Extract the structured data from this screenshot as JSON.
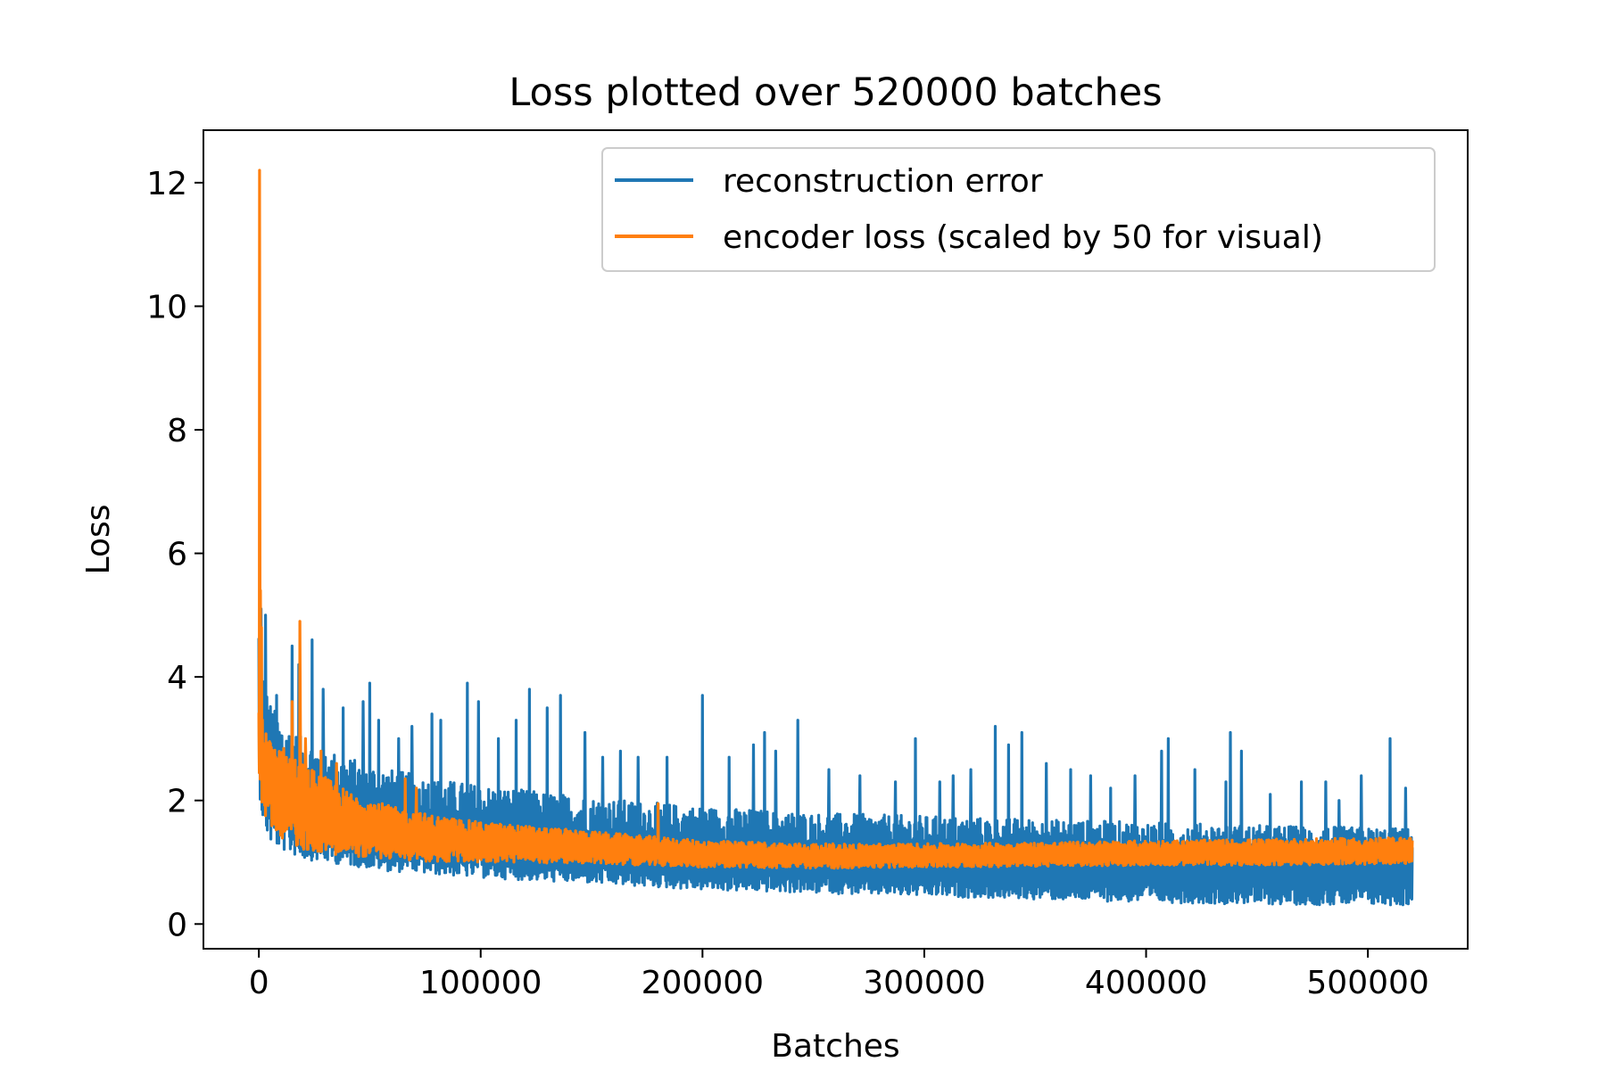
{
  "chart_data": {
    "type": "line",
    "title": "Loss plotted over 520000 batches",
    "xlabel": "Batches",
    "ylabel": "Loss",
    "xlim": [
      -25000,
      545000
    ],
    "ylim": [
      -0.4,
      12.85
    ],
    "xticks": [
      0,
      100000,
      200000,
      300000,
      400000,
      500000
    ],
    "xtick_labels": [
      "0",
      "100000",
      "200000",
      "300000",
      "400000",
      "500000"
    ],
    "yticks": [
      0,
      2,
      4,
      6,
      8,
      10,
      12
    ],
    "ytick_labels": [
      "0",
      "2",
      "4",
      "6",
      "8",
      "10",
      "12"
    ],
    "grid": false,
    "legend_position": "upper right",
    "x_range": [
      0,
      520000
    ],
    "series": [
      {
        "name": "reconstruction error",
        "color": "#1f77b4",
        "envelope": {
          "x": [
            0,
            2000,
            5000,
            10000,
            20000,
            40000,
            60000,
            80000,
            100000,
            150000,
            200000,
            250000,
            300000,
            350000,
            400000,
            450000,
            520000
          ],
          "mid": [
            3.0,
            2.6,
            2.3,
            2.05,
            1.8,
            1.55,
            1.4,
            1.3,
            1.25,
            1.12,
            1.02,
            0.95,
            0.9,
            0.88,
            0.85,
            0.82,
            0.8
          ],
          "low": [
            2.2,
            1.6,
            1.3,
            1.2,
            1.05,
            0.95,
            0.85,
            0.8,
            0.75,
            0.65,
            0.55,
            0.5,
            0.45,
            0.4,
            0.35,
            0.32,
            0.3
          ],
          "high": [
            5.1,
            4.0,
            3.6,
            3.3,
            3.0,
            2.7,
            2.5,
            2.35,
            2.25,
            2.05,
            1.9,
            1.8,
            1.75,
            1.7,
            1.65,
            1.6,
            1.55
          ]
        },
        "spikes": [
          {
            "x": 1000,
            "y": 5.1
          },
          {
            "x": 3000,
            "y": 5.0
          },
          {
            "x": 8000,
            "y": 3.7
          },
          {
            "x": 15000,
            "y": 4.5
          },
          {
            "x": 18000,
            "y": 4.2
          },
          {
            "x": 24000,
            "y": 4.6
          },
          {
            "x": 29000,
            "y": 3.8
          },
          {
            "x": 38000,
            "y": 3.5
          },
          {
            "x": 47000,
            "y": 3.6
          },
          {
            "x": 50000,
            "y": 3.9
          },
          {
            "x": 54000,
            "y": 3.3
          },
          {
            "x": 63000,
            "y": 3.0
          },
          {
            "x": 69000,
            "y": 3.2
          },
          {
            "x": 78000,
            "y": 3.4
          },
          {
            "x": 82000,
            "y": 3.3
          },
          {
            "x": 94000,
            "y": 3.9
          },
          {
            "x": 99000,
            "y": 3.6
          },
          {
            "x": 108000,
            "y": 3.0
          },
          {
            "x": 116000,
            "y": 3.3
          },
          {
            "x": 122000,
            "y": 3.8
          },
          {
            "x": 130000,
            "y": 3.5
          },
          {
            "x": 136000,
            "y": 3.7
          },
          {
            "x": 147000,
            "y": 3.1
          },
          {
            "x": 155000,
            "y": 2.7
          },
          {
            "x": 163000,
            "y": 2.8
          },
          {
            "x": 171000,
            "y": 2.7
          },
          {
            "x": 184000,
            "y": 2.7
          },
          {
            "x": 200000,
            "y": 3.7
          },
          {
            "x": 212000,
            "y": 2.7
          },
          {
            "x": 223000,
            "y": 2.9
          },
          {
            "x": 228000,
            "y": 3.1
          },
          {
            "x": 233000,
            "y": 2.8
          },
          {
            "x": 243000,
            "y": 3.3
          },
          {
            "x": 257000,
            "y": 2.5
          },
          {
            "x": 271000,
            "y": 2.4
          },
          {
            "x": 287000,
            "y": 2.3
          },
          {
            "x": 296000,
            "y": 3.0
          },
          {
            "x": 307000,
            "y": 2.3
          },
          {
            "x": 313000,
            "y": 2.4
          },
          {
            "x": 321000,
            "y": 2.5
          },
          {
            "x": 332000,
            "y": 3.2
          },
          {
            "x": 338000,
            "y": 2.9
          },
          {
            "x": 344000,
            "y": 3.1
          },
          {
            "x": 355000,
            "y": 2.6
          },
          {
            "x": 366000,
            "y": 2.5
          },
          {
            "x": 375000,
            "y": 2.4
          },
          {
            "x": 384000,
            "y": 2.2
          },
          {
            "x": 395000,
            "y": 2.4
          },
          {
            "x": 407000,
            "y": 2.8
          },
          {
            "x": 410000,
            "y": 3.0
          },
          {
            "x": 422000,
            "y": 2.5
          },
          {
            "x": 436000,
            "y": 2.3
          },
          {
            "x": 438000,
            "y": 3.1
          },
          {
            "x": 443000,
            "y": 2.8
          },
          {
            "x": 456000,
            "y": 2.1
          },
          {
            "x": 470000,
            "y": 2.3
          },
          {
            "x": 481000,
            "y": 2.3
          },
          {
            "x": 487000,
            "y": 2.0
          },
          {
            "x": 497000,
            "y": 2.4
          },
          {
            "x": 510000,
            "y": 3.0
          },
          {
            "x": 517000,
            "y": 2.2
          }
        ]
      },
      {
        "name": "encoder loss (scaled by 50 for visual)",
        "color": "#ff7f0e",
        "envelope": {
          "x": [
            0,
            2000,
            5000,
            10000,
            20000,
            40000,
            60000,
            80000,
            100000,
            150000,
            200000,
            250000,
            300000,
            350000,
            400000,
            450000,
            520000
          ],
          "mid": [
            3.0,
            2.5,
            2.3,
            2.1,
            1.85,
            1.6,
            1.45,
            1.35,
            1.3,
            1.22,
            1.12,
            1.08,
            1.1,
            1.1,
            1.12,
            1.13,
            1.15
          ],
          "low": [
            2.2,
            1.8,
            1.6,
            1.4,
            1.2,
            1.1,
            1.05,
            1.0,
            1.0,
            0.98,
            0.92,
            0.9,
            0.92,
            0.93,
            0.95,
            0.95,
            0.97
          ],
          "high": [
            3.8,
            3.2,
            3.0,
            2.9,
            2.6,
            2.15,
            1.9,
            1.75,
            1.65,
            1.5,
            1.35,
            1.3,
            1.3,
            1.32,
            1.35,
            1.37,
            1.4
          ]
        },
        "spikes": [
          {
            "x": 300,
            "y": 12.2
          },
          {
            "x": 700,
            "y": 5.4
          },
          {
            "x": 1200,
            "y": 4.8
          },
          {
            "x": 15000,
            "y": 3.6
          },
          {
            "x": 18500,
            "y": 4.9
          },
          {
            "x": 21000,
            "y": 3.0
          },
          {
            "x": 28000,
            "y": 2.8
          },
          {
            "x": 35000,
            "y": 2.6
          },
          {
            "x": 66000,
            "y": 2.35
          },
          {
            "x": 71000,
            "y": 2.2
          },
          {
            "x": 180000,
            "y": 1.95
          }
        ]
      }
    ]
  }
}
